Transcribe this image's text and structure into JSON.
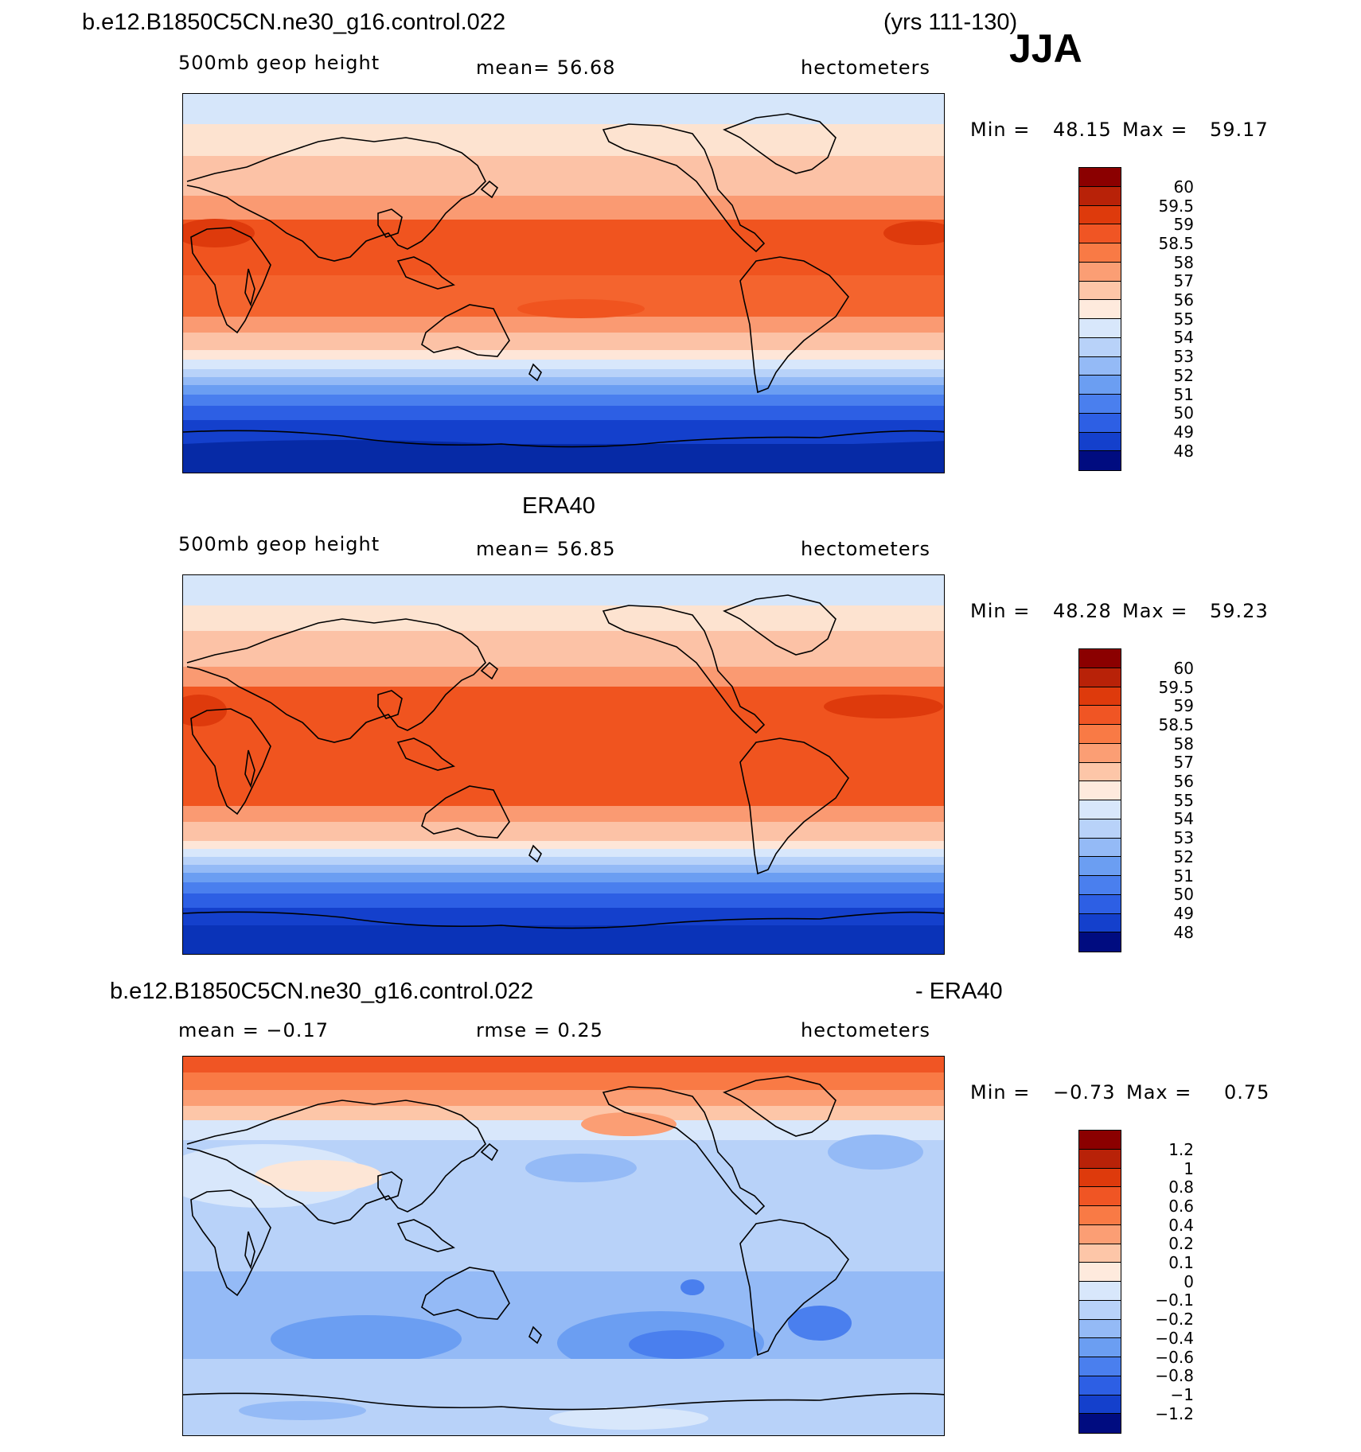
{
  "case_name": "b.e12.B1850C5CN.ne30_g16.control.022",
  "years": "(yrs 111-130)",
  "season": "JJA",
  "panels": [
    {
      "id": "model",
      "heading": "",
      "variable": "500mb geop height",
      "stat": "mean=   56.68",
      "units": "hectometers",
      "min_label": "Min =",
      "min_value": "48.15",
      "max_label": "Max =",
      "max_value": "59.17",
      "colorbar_levels": [
        "60",
        "59.5",
        "59",
        "58.5",
        "58",
        "57",
        "56",
        "55",
        "54",
        "53",
        "52",
        "51",
        "50",
        "49",
        "48"
      ]
    },
    {
      "id": "obs",
      "heading": "ERA40",
      "variable": "500mb geop height",
      "stat": "mean=   56.85",
      "units": "hectometers",
      "min_label": "Min =",
      "min_value": "48.28",
      "max_label": "Max =",
      "max_value": "59.23",
      "colorbar_levels": [
        "60",
        "59.5",
        "59",
        "58.5",
        "58",
        "57",
        "56",
        "55",
        "54",
        "53",
        "52",
        "51",
        "50",
        "49",
        "48"
      ]
    },
    {
      "id": "diff",
      "heading_left": "b.e12.B1850C5CN.ne30_g16.control.022",
      "heading_right": "- ERA40",
      "stat": "mean =   −0.17",
      "stat2": "rmse =    0.25",
      "units": "hectometers",
      "min_label": "Min =",
      "min_value": "−0.73",
      "max_label": "Max =",
      "max_value": "0.75",
      "colorbar_levels": [
        "1.2",
        "1",
        "0.8",
        "0.6",
        "0.4",
        "0.2",
        "0.1",
        "0",
        "−0.1",
        "−0.2",
        "−0.4",
        "−0.6",
        "−0.8",
        "−1",
        "−1.2"
      ]
    }
  ],
  "palette": [
    "#67000d",
    "#a50f15",
    "#cb181d",
    "#ef3b2c",
    "#fb6a4a",
    "#fc9272",
    "#fcbba1",
    "#fee0d2",
    "#deebf7",
    "#c6dbef",
    "#9ecae1",
    "#6baed6",
    "#4292c6",
    "#2171b5",
    "#08519c",
    "#08306b"
  ],
  "colorbar_colors": [
    "#8b0000",
    "#b82208",
    "#de3a0c",
    "#f05524",
    "#f97a45",
    "#fb9e74",
    "#fdc6a8",
    "#feeadd",
    "#d8e7fb",
    "#b8d2f9",
    "#94baf6",
    "#6b9ef2",
    "#4a7fee",
    "#2d5fe4",
    "#1440cc",
    "#062aa6",
    "#000c80"
  ],
  "chart_data": {
    "type": "heatmap",
    "description_free": true,
    "panels": [
      {
        "title": "500mb geop height (model)",
        "units": "hectometers",
        "mean": 56.68,
        "min": 48.15,
        "max": 59.17,
        "levels": [
          48,
          49,
          50,
          51,
          52,
          53,
          54,
          55,
          56,
          57,
          58,
          58.5,
          59,
          59.5,
          60
        ]
      },
      {
        "title": "500mb geop height (ERA40)",
        "units": "hectometers",
        "mean": 56.85,
        "min": 48.28,
        "max": 59.23,
        "levels": [
          48,
          49,
          50,
          51,
          52,
          53,
          54,
          55,
          56,
          57,
          58,
          58.5,
          59,
          59.5,
          60
        ]
      },
      {
        "title": "model - ERA40",
        "units": "hectometers",
        "mean": -0.17,
        "rmse": 0.25,
        "min": -0.73,
        "max": 0.75,
        "levels": [
          -1.2,
          -1,
          -0.8,
          -0.6,
          -0.4,
          -0.2,
          -0.1,
          0,
          0.1,
          0.2,
          0.4,
          0.6,
          0.8,
          1,
          1.2
        ]
      }
    ]
  }
}
